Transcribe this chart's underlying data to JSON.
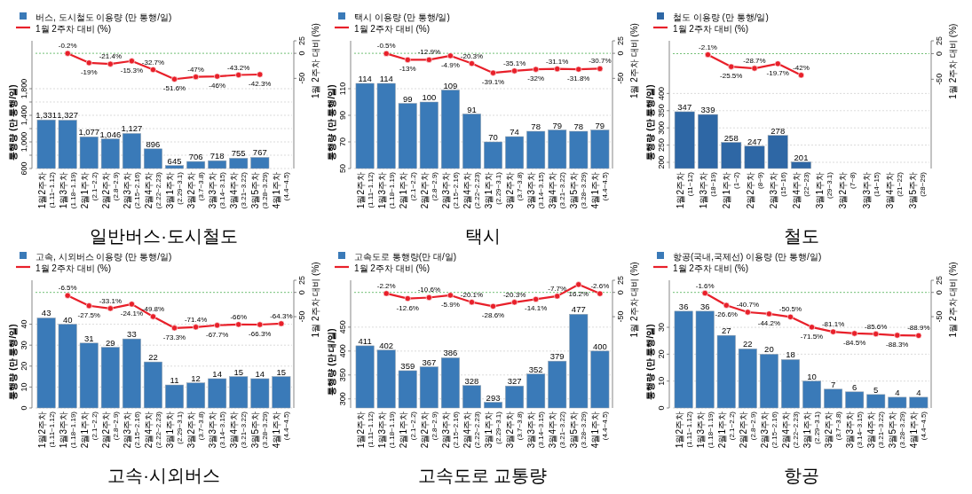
{
  "chart_data": [
    {
      "type": "bar",
      "title": "일반버스·도시철도",
      "ylabel": "통행량 (만 통행/일)",
      "y2label": "1월 2주차 대비 (%)",
      "legend": "top left",
      "grid": "y",
      "marker": "circle",
      "categories": [
        "1월2주차\n(1.11~1.12)",
        "1월3주차\n(1.18~1.19)",
        "2월1주차\n(2.1~2.2)",
        "2월2주차\n(2.8~2.9)",
        "2월3주차\n(2.15~2.16)",
        "2월4주차\n(2.22~2.23)",
        "3월1주차\n(2.29~3.1)",
        "3월2주차\n(3.7~3.8)",
        "3월3주차\n(3.14~3.15)",
        "3월4주차\n(3.21~3.22)",
        "3월5주차\n(3.28~3.29)",
        "4월1주차\n(4.4~4.5)"
      ],
      "ylim": [
        600,
        2520
      ],
      "yticks": [
        600,
        {
          "value": 800,
          "label": null
        },
        {
          "value": 1000,
          "label": "1,000"
        },
        {
          "value": 1200,
          "label": null
        },
        {
          "value": 1400,
          "label": "1,400"
        },
        {
          "value": 1600,
          "label": null
        },
        {
          "value": 1800,
          "label": "1,800"
        }
      ],
      "y2lim": [
        -230,
        25
      ],
      "y2ticks": [
        -50,
        0,
        25
      ],
      "ref_lines": [
        {
          "axis": "y2",
          "value": 0,
          "color": "#4caf50",
          "line_style": "dotted"
        }
      ],
      "series": [
        {
          "name": "버스, 도시철도 이용량 (만 통행/일)",
          "color": "#3a7ab8",
          "values": [
            1331,
            1327,
            1077,
            1046,
            1127,
            896,
            645,
            706,
            718,
            755,
            767,
            null
          ],
          "value_labels": [
            "1,331",
            "1,327",
            "1,077",
            "1,046",
            "1,127",
            "896",
            "645",
            "706",
            "718",
            "755",
            "767",
            null
          ]
        },
        {
          "name": "1월 2주차 대비 (%)",
          "type": "line",
          "axis": "y2",
          "color": "#e8202a",
          "values": [
            null,
            -0.2,
            -19,
            -21.4,
            -15.3,
            -32.7,
            -51.6,
            -47,
            -46,
            -43.2,
            -42.3,
            null
          ],
          "value_labels": [
            null,
            "-0.2%",
            "-19%",
            "-21.4%",
            "-15.3%",
            "-32.7%",
            "-51.6%",
            "-47%",
            "-46%",
            "-43.2%",
            "-42.3%",
            null
          ]
        }
      ]
    },
    {
      "type": "bar",
      "title": "택시",
      "ylabel": "통행량 (만 통행/일)",
      "y2label": "1월 2주차 대비 (%)",
      "legend": "top left",
      "grid": "y",
      "marker": "circle",
      "categories": [
        "1월2주차\n(1.11~1.12)",
        "1월3주차\n(1.18~1.19)",
        "2월1주차\n(2.1~2.2)",
        "2월2주차\n(2.8~2.9)",
        "2월3주차\n(2.15~2.16)",
        "2월4주차\n(2.22~2.23)",
        "3월1주차\n(2.29~3.1)",
        "3월2주차\n(3.7~3.8)",
        "3월3주차\n(3.14~3.15)",
        "3월4주차\n(3.21~3.22)",
        "3월5주차\n(3.28~3.29)",
        "4월1주차\n(4.4~4.5)"
      ],
      "ylim": [
        50,
        146
      ],
      "yticks": [
        50,
        70,
        90,
        110
      ],
      "y2lim": [
        -230,
        25
      ],
      "y2ticks": [
        -50,
        0,
        25
      ],
      "ref_lines": [
        {
          "axis": "y2",
          "value": 0,
          "color": "#4caf50",
          "line_style": "dotted"
        }
      ],
      "series": [
        {
          "name": "택시 이용량 (만 통행/일)",
          "color": "#3a7ab8",
          "values": [
            114,
            114,
            99,
            100,
            109,
            91,
            70,
            74,
            78,
            79,
            78,
            79
          ],
          "value_labels": [
            "114",
            "114",
            "99",
            "100",
            "109",
            "91",
            "70",
            "74",
            "78",
            "79",
            "78",
            "79"
          ]
        },
        {
          "name": "1월 2주차 대비 (%)",
          "type": "line",
          "axis": "y2",
          "color": "#e8202a",
          "values": [
            null,
            -0.5,
            -13,
            -12.9,
            -4.9,
            -20.3,
            -39.1,
            -35.1,
            -32,
            -31.1,
            -31.8,
            -30.7
          ],
          "value_labels": [
            null,
            "-0.5%",
            "-13%",
            "-12.9%",
            "-4.9%",
            "-20.3%",
            "-39.1%",
            "-35.1%",
            "-32%",
            "-31.1%",
            "-31.8%",
            "-30.7%"
          ]
        }
      ]
    },
    {
      "type": "bar",
      "title": "철도",
      "ylabel": "통행량 (만 통행/일)",
      "y2label": "1월 2주차 대비 (%)",
      "legend": "top left",
      "grid": "y",
      "marker": "circle",
      "categories": [
        "1월2주차\n(11~12)",
        "1월3주차\n(18~19)",
        "2월1주차\n(1~2)",
        "2월2주차\n(8~9)",
        "2월3주차\n(15~16)",
        "2월4주차\n(22~23)",
        "3월1주차\n(29~3.1)",
        "3월2주차\n(7~8)",
        "3월3주차\n(14~15)",
        "3월4주차\n(21~22)",
        "3월5주차\n(28~29)"
      ],
      "ylim": [
        182,
        553
      ],
      "yticks": [
        200,
        250,
        300,
        350,
        400
      ],
      "y2lim": [
        -224,
        25
      ],
      "y2ticks": [
        -50,
        0,
        25
      ],
      "ref_lines": [
        {
          "axis": "y2",
          "value": 0,
          "color": "#4caf50",
          "line_style": "dotted"
        }
      ],
      "series": [
        {
          "name": "철도 이용량 (만 통행/일)",
          "color": "#2e67a5",
          "values": [
            347,
            339,
            258,
            247,
            278,
            201,
            null,
            null,
            null,
            null,
            null
          ],
          "value_labels": [
            "347",
            "339",
            "258",
            "247",
            "278",
            "201",
            null,
            null,
            null,
            null,
            null
          ]
        },
        {
          "name": "1월 2주차 대비 (%)",
          "type": "line",
          "axis": "y2",
          "color": "#e8202a",
          "values": [
            null,
            -2.1,
            -25.5,
            -28.7,
            -19.7,
            -42,
            null,
            null,
            null,
            null,
            null
          ],
          "value_labels": [
            null,
            "-2.1%",
            "-25.5%",
            "-28.7%",
            "-19.7%",
            "-42%",
            null,
            null,
            null,
            null,
            null
          ]
        }
      ]
    },
    {
      "type": "bar",
      "title": "고속·시외버스",
      "ylabel": "통행량 (만 통행/일)",
      "y2label": "1월 2주차 대비 (%)",
      "legend": "top left",
      "grid": "y",
      "marker": "circle",
      "categories": [
        "1월2주차\n(1.11~1.12)",
        "1월3주차\n(1.18~1.19)",
        "2월1주차\n(2.1~2.2)",
        "2월2주차\n(2.8~2.9)",
        "2월3주차\n(2.15~2.16)",
        "2월4주차\n(2.22~2.23)",
        "3월1주차\n(2.29~3.1)",
        "3월2주차\n(3.7~3.8)",
        "3월3주차\n(3.14~3.15)",
        "3월4주차\n(3.21~3.22)",
        "3월5주차\n(3.28~3.29)",
        "4월1주차\n(4.4~4.5)"
      ],
      "ylim": [
        0,
        61
      ],
      "yticks": [
        0,
        10,
        20,
        30,
        40
      ],
      "y2lim": [
        -238,
        25
      ],
      "y2ticks": [
        -50,
        0,
        25
      ],
      "ref_lines": [
        {
          "axis": "y2",
          "value": 0,
          "color": "#4caf50",
          "line_style": "dotted"
        }
      ],
      "series": [
        {
          "name": "고속, 시외버스 이용량 (만 통행/일)",
          "color": "#3a7ab8",
          "values": [
            43,
            40,
            31,
            29,
            33,
            22,
            11,
            12,
            14,
            15,
            14,
            15
          ],
          "value_labels": [
            "43",
            "40",
            "31",
            "29",
            "33",
            "22",
            "11",
            "12",
            "14",
            "15",
            "14",
            "15"
          ]
        },
        {
          "name": "1월 2주차 대비 (%)",
          "type": "line",
          "axis": "y2",
          "color": "#e8202a",
          "values": [
            null,
            -6.5,
            -27.5,
            -33.1,
            -24.1,
            -49.8,
            -73.3,
            -71.4,
            -67.7,
            -66,
            -66.3,
            -64.3
          ],
          "value_labels": [
            null,
            "-6.5%",
            "-27.5%",
            "-33.1%",
            "-24.1%",
            "-49.8%",
            "-73.3%",
            "-71.4%",
            "-67.7%",
            "-66%",
            "-66.3%",
            "-64.3%"
          ]
        }
      ]
    },
    {
      "type": "bar",
      "title": "고속도로  교통량",
      "ylabel": "통행량 (만 대/일)",
      "y2label": "1월 2주차 대비 (%)",
      "legend": "top left",
      "grid": "y",
      "marker": "circle",
      "categories": [
        "1월2주차\n(1.11~1.12)",
        "1월3주차\n(1.18~1.19)",
        "2월1주차\n(2.1~2.2)",
        "2월2주차\n(2.8~2.9)",
        "2월3주차\n(2.15~2.16)",
        "2월4주차\n(2.22~2.23)",
        "3월1주차\n(2.29~3.1)",
        "3월2주차\n(3.7~3.8)",
        "3월3주차\n(3.14~3.15)",
        "3월4주차\n(3.21~3.22)",
        "3월5주차\n(3.28~3.29)",
        "4월1주차\n(4.4~4.5)"
      ],
      "ylim": [
        281,
        548
      ],
      "yticks": [
        300,
        350,
        400,
        450
      ],
      "y2lim": [
        -238,
        25
      ],
      "y2ticks": [
        -50,
        0,
        25
      ],
      "ref_lines": [
        {
          "axis": "y2",
          "value": 0,
          "color": "#4caf50",
          "line_style": "dotted"
        }
      ],
      "series": [
        {
          "name": "고속도로 통행량(만 대/일)",
          "color": "#3a7ab8",
          "values": [
            411,
            402,
            359,
            367,
            386,
            328,
            293,
            327,
            352,
            379,
            477,
            400
          ],
          "value_labels": [
            "411",
            "402",
            "359",
            "367",
            "386",
            "328",
            "293",
            "327",
            "352",
            "379",
            "477",
            "400"
          ]
        },
        {
          "name": "1월 2주차 대비 (%)",
          "type": "line",
          "axis": "y2",
          "color": "#e8202a",
          "values": [
            null,
            -2.2,
            -12.6,
            -10.6,
            -5.9,
            -20.1,
            -28.6,
            -20.3,
            -14.1,
            -7.7,
            16.2,
            -2.6
          ],
          "value_labels": [
            null,
            "-2.2%",
            "-12.6%",
            "-10.6%",
            "-5.9%",
            "-20.1%",
            "-28.6%",
            "-20.3%",
            "-14.1%",
            "-7.7%",
            "16.2%",
            "-2.6%"
          ]
        }
      ]
    },
    {
      "type": "bar",
      "title": "항공",
      "ylabel": "통행량 (만 통행/일)",
      "y2label": "1월 2주차 대비 (%)",
      "legend": "top left",
      "grid": "y",
      "marker": "circle",
      "categories": [
        "1월2주차\n(1.11~1.12)",
        "1월3주차\n(1.18~1.19)",
        "2월1주차\n(2.1~2.2)",
        "2월2주차\n(2.8~2.9)",
        "2월3주차\n(2.15~2.16)",
        "2월4주차\n(2.22~2.23)",
        "3월1주차\n(2.29~3.1)",
        "3월2주차\n(3.7~3.8)",
        "3월3주차\n(3.14~3.15)",
        "3월4주차\n(3.21~3.22)",
        "3월5주차\n(3.28~3.29)",
        "4월1주차\n(4.4~4.5)"
      ],
      "ylim": [
        0,
        47.5
      ],
      "yticks": [
        0,
        10,
        20,
        30
      ],
      "y2lim": [
        -238,
        25
      ],
      "y2ticks": [
        -50,
        0,
        25
      ],
      "ref_lines": [
        {
          "axis": "y2",
          "value": 0,
          "color": "#4caf50",
          "line_style": "dotted"
        }
      ],
      "series": [
        {
          "name": "항공(국내,국제선) 이용량 (만 통행/일)",
          "color": "#3a7ab8",
          "values": [
            36,
            36,
            27,
            22,
            20,
            18,
            10,
            7,
            6,
            5,
            4,
            4
          ],
          "value_labels": [
            "36",
            "36",
            "27",
            "22",
            "20",
            "18",
            "10",
            "7",
            "6",
            "5",
            "4",
            "4"
          ]
        },
        {
          "name": "1월 2주차 대비 (%)",
          "type": "line",
          "axis": "y2",
          "color": "#e8202a",
          "values": [
            null,
            -1.6,
            -26.6,
            -40.7,
            -44.2,
            -50.5,
            -71.5,
            -81.1,
            -84.5,
            -85.6,
            -88.3,
            -88.9
          ],
          "value_labels": [
            null,
            "-1.6%",
            "-26.6%",
            "-40.7%",
            "-44.2%",
            "-50.5%",
            "-71.5%",
            "-81.1%",
            "-84.5%",
            "-85.6%",
            "-88.3%",
            "-88.9%"
          ]
        }
      ]
    }
  ]
}
